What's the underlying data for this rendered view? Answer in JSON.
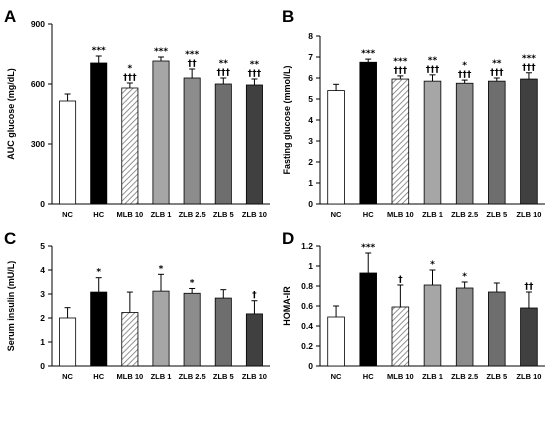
{
  "chart_data": [
    {
      "panel": "A",
      "type": "bar",
      "ylabel": "AUC glucose (mg/dL)",
      "ylim": [
        0,
        900
      ],
      "yticks": [
        "0",
        "300",
        "600",
        "900"
      ],
      "categories": [
        "NC",
        "HC",
        "MLB 10",
        "ZLB 1",
        "ZLB 2.5",
        "ZLB 5",
        "ZLB 10"
      ],
      "values": [
        515,
        705,
        580,
        715,
        630,
        600,
        595
      ],
      "errors": [
        35,
        35,
        25,
        20,
        45,
        30,
        30
      ],
      "sig_top": [
        "",
        "***",
        "*",
        "***",
        "***",
        "**",
        "**"
      ],
      "sig_bottom": [
        "",
        "",
        "†††",
        "",
        "††",
        "†††",
        "†††"
      ]
    },
    {
      "panel": "B",
      "type": "bar",
      "ylabel": "Fasting glucose (mmol/L)",
      "ylim": [
        0,
        8
      ],
      "yticks": [
        "0",
        "1",
        "2",
        "3",
        "4",
        "5",
        "6",
        "7",
        "8"
      ],
      "categories": [
        "NC",
        "HC",
        "MLB 10",
        "ZLB 1",
        "ZLB 2.5",
        "ZLB 5",
        "ZLB 10"
      ],
      "values": [
        5.4,
        6.75,
        5.95,
        5.85,
        5.75,
        5.85,
        5.95
      ],
      "errors": [
        0.3,
        0.15,
        0.15,
        0.3,
        0.15,
        0.15,
        0.3
      ],
      "sig_top": [
        "",
        "***",
        "***",
        "**",
        "*",
        "**",
        "***"
      ],
      "sig_bottom": [
        "",
        "",
        "†††",
        "†††",
        "†††",
        "†††",
        "†††"
      ]
    },
    {
      "panel": "C",
      "type": "bar",
      "ylabel": "Serum insulin (mU/L)",
      "ylim": [
        0,
        5
      ],
      "yticks": [
        "0",
        "1",
        "2",
        "3",
        "4",
        "5"
      ],
      "categories": [
        "NC",
        "HC",
        "MLB 10",
        "ZLB 1",
        "ZLB 2.5",
        "ZLB 5",
        "ZLB 10"
      ],
      "values": [
        2.0,
        3.08,
        2.23,
        3.12,
        3.03,
        2.83,
        2.17
      ],
      "errors": [
        0.43,
        0.6,
        0.85,
        0.7,
        0.2,
        0.35,
        0.55
      ],
      "sig_top": [
        "",
        "*",
        "",
        "*",
        "*",
        "",
        "†"
      ],
      "sig_bottom": [
        "",
        "",
        "",
        "",
        "",
        "",
        ""
      ]
    },
    {
      "panel": "D",
      "type": "bar",
      "ylabel": "HOMA-IR",
      "ylim": [
        0,
        1.2
      ],
      "yticks": [
        "0",
        "0.2",
        "0.4",
        "0.6",
        "0.8",
        "1",
        "1.2"
      ],
      "categories": [
        "NC",
        "HC",
        "MLB 10",
        "ZLB 1",
        "ZLB 2.5",
        "ZLB 5",
        "ZLB 10"
      ],
      "values": [
        0.49,
        0.93,
        0.59,
        0.81,
        0.78,
        0.74,
        0.58
      ],
      "errors": [
        0.11,
        0.2,
        0.22,
        0.15,
        0.06,
        0.09,
        0.16
      ],
      "sig_top": [
        "",
        "***",
        "†",
        "*",
        "*",
        "",
        "††"
      ],
      "sig_bottom": [
        "",
        "",
        "",
        "",
        "",
        "",
        ""
      ]
    }
  ]
}
